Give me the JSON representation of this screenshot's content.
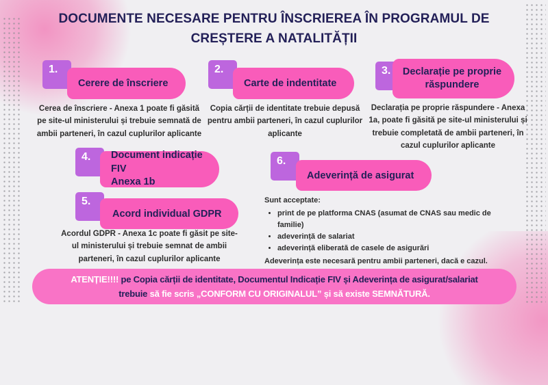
{
  "title": "DOCUMENTE NECESARE PENTRU ÎNSCRIEREA ÎN PROGRAMUL DE CREȘTERE A NATALITĂȚII",
  "items": [
    {
      "number": "1.",
      "label": "Cerere de înscriere",
      "body": "Cerea de înscriere - Anexa 1 poate fi găsită pe site-ul ministerului și trebuie semnată de ambii parteneri, în cazul cuplurilor aplicante"
    },
    {
      "number": "2.",
      "label": "Carte de indentitate",
      "body": "Copia cărții de identitate trebuie depusă pentru ambii parteneri, în cazul cuplurilor aplicante"
    },
    {
      "number": "3.",
      "label": "Declarație pe proprie răspundere",
      "body": "Declarația pe proprie răspundere - Anexa 1a, poate fi găsită pe site-ul ministerului și trebuie completată de ambii parteneri, în cazul cuplurilor aplicante"
    },
    {
      "number": "4.",
      "label": "Document indicație FIV",
      "label_line2": "Anexa 1b"
    },
    {
      "number": "5.",
      "label": "Acord individual GDPR",
      "body": "Acordul GDPR - Anexa 1c poate fi găsit pe site-ul ministerului și trebuie semnat de ambii parteneri, în cazul cuplurilor aplicante"
    },
    {
      "number": "6.",
      "label": "Adeverință de asigurat",
      "intro": "Sunt acceptate:",
      "bullets": [
        "print de pe platforma CNAS (asumat de CNAS sau medic de familie)",
        "adeverință de salariat",
        "adeverință eliberată de casele de asigurări"
      ],
      "footer": "Adeverința este necesară pentru ambii parteneri, dacă e cazul."
    }
  ],
  "banner": {
    "attention": "ATENȚIE!!!!",
    "line1_rest": "pe Copia cărții de identitate, Documentul Indicație FIV și Adeverința de asigurat/salariat",
    "line2_dark": "trebuie",
    "line2_highlight": "să fie scris „CONFORM CU ORIGINALUL” și să existe SEMNĂTURĂ."
  },
  "colors": {
    "background": "#f0eff2",
    "pill_pink": "#f95cba",
    "banner_pink": "#f973c6",
    "number_purple": "#bd66de",
    "navy_text": "#232058",
    "body_text": "#2e2e2e",
    "corner_blob_pink": "#f28fc0",
    "edge_dots_gray": "#8e8e93"
  }
}
